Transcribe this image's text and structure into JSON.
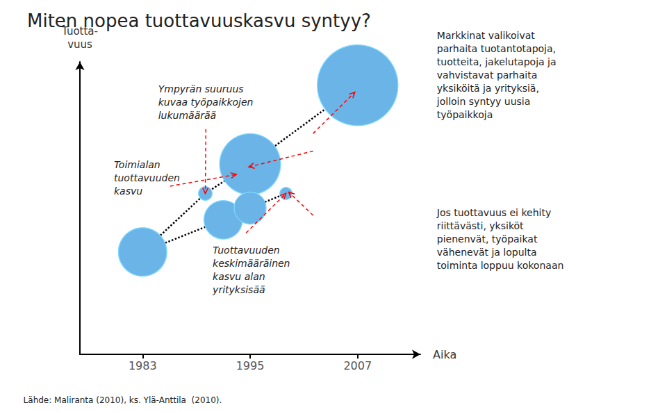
{
  "chart_data": {
    "type": "scatter",
    "title": "Miten nopea tuottavuuskasvu syntyy?",
    "xlabel": "Aika",
    "ylabel": "Tuotta-\nvuus",
    "xlim": [
      1976,
      2014
    ],
    "xticks": [
      1983,
      1995,
      2007
    ],
    "ylim": [
      0,
      10
    ],
    "tick_labels": "x",
    "grid": false,
    "series": [
      {
        "x": [
          1983,
          1990,
          1995,
          2007
        ],
        "values": [
          3.5,
          5.5,
          6.5,
          9.2
        ],
        "sizes": [
          2500,
          200,
          4000,
          7000
        ],
        "color": "#6ab4e8",
        "marker": "circle",
        "line_style": "dotted"
      },
      {
        "x": [
          1983,
          1992,
          1995,
          1999
        ],
        "values": [
          3.5,
          4.6,
          5.0,
          5.5
        ],
        "sizes": [
          2500,
          1600,
          1100,
          160
        ],
        "color": "#6ab4e8",
        "marker": "circle",
        "line_style": "dotted"
      }
    ],
    "annotations": [
      "Ympyrän suuruus\nkuvaa työpaikkojen\nlukumäärää",
      "Toimialan\ntuottavuuden\nkasvu",
      "Tuottavuuden\nkeskimääräinen\nkasvu alan\nyrityksisää",
      "Markkinat valikoivat\nparhaita tuotantotapoja,\ntuotteita, jakelutapoja ja\nvahvistavat parhaita\nyksiköitä ja yrityksiä,\njolloin syntyy uusia\ntyöpaikkoja",
      "Jos tuottavuus ei kehity\nriittävästi, yksiköt\npienenvät, työpaikat\nvähenevät ja lopulta\ntoiminta loppuu kokonaan",
      "Lähde: Maliranta (2010), ks. Ylä-Anttila  (2010)."
    ]
  }
}
